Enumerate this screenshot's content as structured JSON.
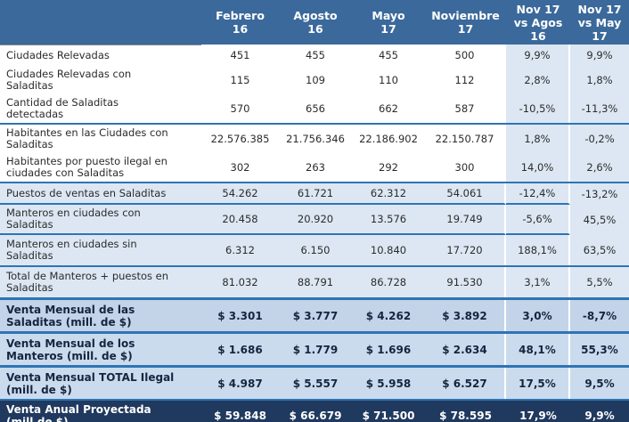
{
  "colors": {
    "header_bg": "#3B699B",
    "accent_line": "#2E74B5",
    "light_blue": "#DCE7F3",
    "venta_a": "#C3D3E8",
    "venta_b": "#CBDBEE",
    "dark_navy": "#20395E"
  },
  "chart_data": {
    "type": "table",
    "title": "",
    "columns": [
      "Febrero\n16",
      "Agosto\n16",
      "Mayo\n17",
      "Noviembre\n17",
      "Nov 17\nvs Agos\n16",
      "Nov 17\nvs May\n17"
    ],
    "rows": [
      {
        "label": "Ciudades Relevadas",
        "values": [
          "451",
          "455",
          "455",
          "500",
          "9,9%",
          "9,9%"
        ],
        "style": "white"
      },
      {
        "label": "Ciudades Relevadas con\nSaladitas",
        "values": [
          "115",
          "109",
          "110",
          "112",
          "2,8%",
          "1,8%"
        ],
        "style": "white"
      },
      {
        "label": "Cantidad de Saladitas\ndetectadas",
        "values": [
          "570",
          "656",
          "662",
          "587",
          "-10,5%",
          "-11,3%"
        ],
        "style": "white"
      },
      {
        "label": "Habitantes en las Ciudades con\nSaladitas",
        "values": [
          "22.576.385",
          "21.756.346",
          "22.186.902",
          "22.150.787",
          "1,8%",
          "-0,2%"
        ],
        "style": "white"
      },
      {
        "label": "Habitantes por puesto ilegal en\nciudades con Saladitas",
        "values": [
          "302",
          "263",
          "292",
          "300",
          "14,0%",
          "2,6%"
        ],
        "style": "white"
      },
      {
        "label": "Puestos de ventas en Saladitas",
        "values": [
          "54.262",
          "61.721",
          "62.312",
          "54.061",
          "-12,4%",
          "-13,2%"
        ],
        "style": "blue"
      },
      {
        "label": "Manteros en ciudades con\nSaladitas",
        "values": [
          "20.458",
          "20.920",
          "13.576",
          "19.749",
          "-5,6%",
          "45,5%"
        ],
        "style": "blue"
      },
      {
        "label": "Manteros en ciudades sin\nSaladitas",
        "values": [
          "6.312",
          "6.150",
          "10.840",
          "17.720",
          "188,1%",
          "63,5%"
        ],
        "style": "blue"
      },
      {
        "label": "Total de Manteros + puestos en\nSaladitas",
        "values": [
          "81.032",
          "88.791",
          "86.728",
          "91.530",
          "3,1%",
          "5,5%"
        ],
        "style": "blue"
      },
      {
        "label": "Venta Mensual de las\nSaladitas (mill. de $)",
        "values": [
          "$ 3.301",
          "$ 3.777",
          "$ 4.262",
          "$ 3.892",
          "3,0%",
          "-8,7%"
        ],
        "style": "venta-a"
      },
      {
        "label": "Venta Mensual de los\nManteros (mill. de $)",
        "values": [
          "$ 1.686",
          "$ 1.779",
          "$ 1.696",
          "$ 2.634",
          "48,1%",
          "55,3%"
        ],
        "style": "venta-b"
      },
      {
        "label": "Venta Mensual TOTAL Ilegal\n(mill. de $)",
        "values": [
          "$ 4.987",
          "$ 5.557",
          "$ 5.958",
          "$ 6.527",
          "17,5%",
          "9,5%"
        ],
        "style": "venta-b"
      },
      {
        "label": "Venta Anual Proyectada\n(mill.de $)",
        "values": [
          "$ 59.848",
          "$ 66.679",
          "$ 71.500",
          "$ 78.595",
          "17,9%",
          "9,9%"
        ],
        "style": "dark"
      }
    ]
  }
}
